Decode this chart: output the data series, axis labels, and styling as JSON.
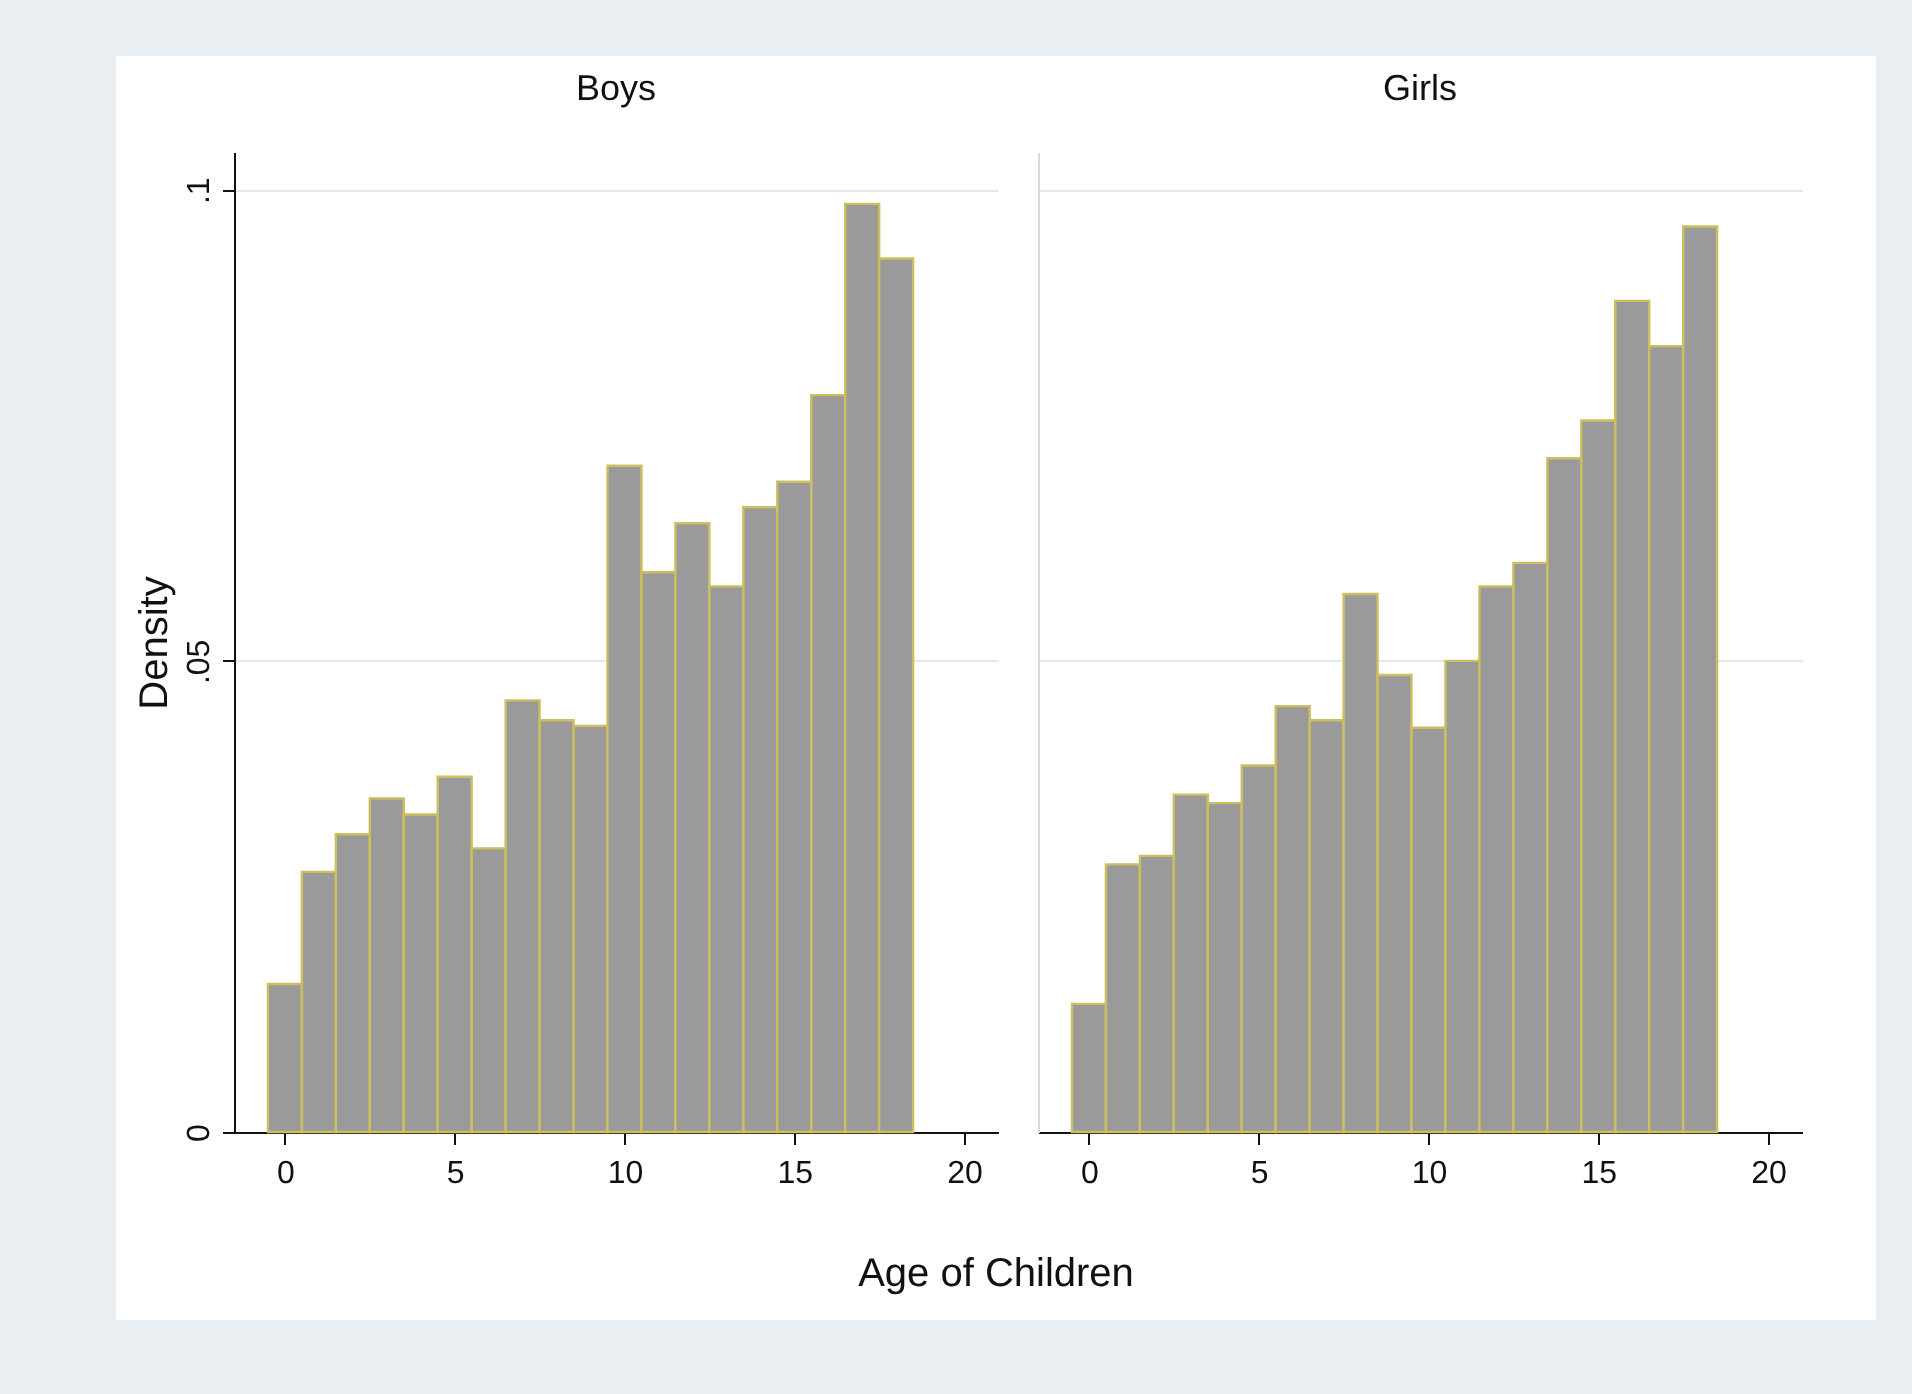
{
  "chart_data": [
    {
      "type": "histogram",
      "title": "Boys",
      "ylabel": "Density",
      "xlabel": "Age of Children",
      "color": "#9a9a9a",
      "bins": [
        -0.5,
        0.5,
        1.5,
        2.5,
        3.5,
        4.5,
        5.5,
        6.5,
        7.5,
        8.5,
        9.5,
        10.5,
        11.5,
        12.5,
        13.5,
        14.5,
        15.5,
        16.5,
        17.5,
        18.5
      ],
      "values": [
        0.0157,
        0.0276,
        0.0316,
        0.0354,
        0.0337,
        0.0377,
        0.0301,
        0.0458,
        0.0437,
        0.0431,
        0.0707,
        0.0594,
        0.0646,
        0.0579,
        0.0663,
        0.069,
        0.0782,
        0.0985,
        0.0927
      ],
      "xlim": [
        -1.5,
        21
      ],
      "xticks": [
        0,
        5,
        10,
        15,
        20
      ],
      "ylim": [
        0,
        0.104
      ],
      "yticks": [
        0,
        {
          "value": 0.05,
          "label": ".05"
        },
        {
          "value": 0.1,
          "label": ".1"
        }
      ],
      "grid": "y"
    },
    {
      "type": "histogram",
      "title": "Girls",
      "color": "#9a9a9a",
      "bins": [
        -0.5,
        0.5,
        1.5,
        2.5,
        3.5,
        4.5,
        5.5,
        6.5,
        7.5,
        8.5,
        9.5,
        10.5,
        11.5,
        12.5,
        13.5,
        14.5,
        15.5,
        16.5,
        17.5,
        18.5
      ],
      "values": [
        0.0136,
        0.0284,
        0.0293,
        0.0358,
        0.0349,
        0.0389,
        0.0452,
        0.0437,
        0.0571,
        0.0485,
        0.0429,
        0.05,
        0.0579,
        0.0604,
        0.0715,
        0.0755,
        0.0882,
        0.0834,
        0.0961
      ],
      "xlim": [
        -1.5,
        21
      ],
      "xticks": [
        0,
        5,
        10,
        15,
        20
      ],
      "ylim": [
        0,
        0.104
      ],
      "yticks": [
        0,
        0.05,
        0.1
      ],
      "grid": "y",
      "tick_labels": "x"
    }
  ]
}
